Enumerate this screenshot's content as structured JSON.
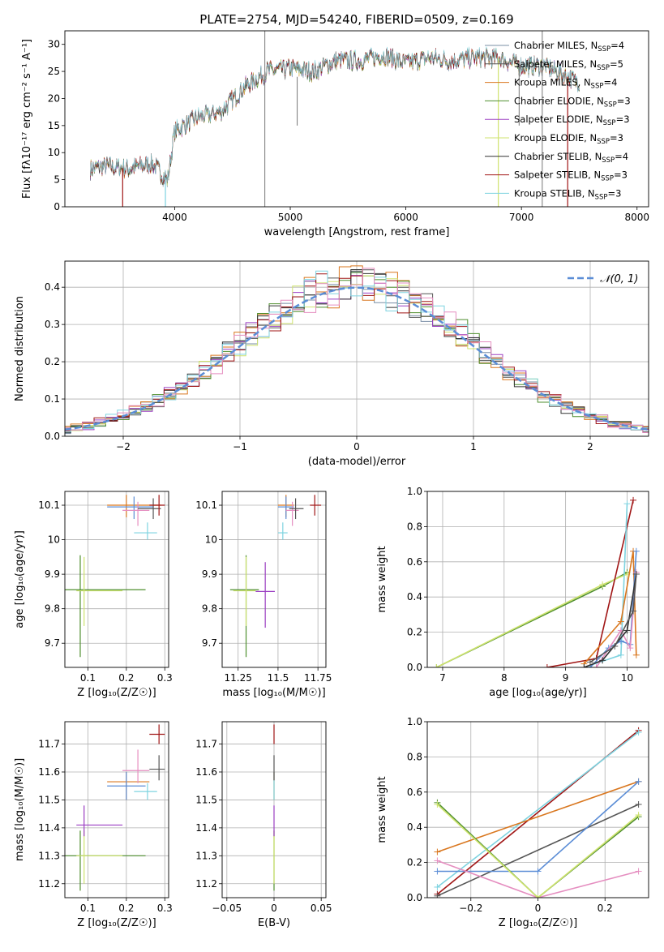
{
  "figure_title": "PLATE=2754, MJD=54240, FIBERID=0509, z=0.169",
  "colors": {
    "Chabrier MILES": "#7a8fa6",
    "Salpeter MILES": "#555555",
    "Kroupa MILES": "#d9771f",
    "Chabrier ELODIE": "#4f8f2f",
    "Salpeter ELODIE": "#9b3fc2",
    "Kroupa ELODIE": "#cfe36f",
    "Chabrier STELIB": "#333333",
    "Salpeter STELIB": "#a01515",
    "Kroupa STELIB": "#7ed3e0",
    "gaussian": "#5b8dd6",
    "z_pink": "#e58ec0",
    "z_blue": "#5b8dd6",
    "z_gray": "#555555"
  },
  "chart_data": [
    {
      "id": "spectrum",
      "type": "line",
      "xlabel": "wavelength [Angstrom, rest frame]",
      "ylabel": "Flux [fλ10⁻¹⁷ erg cm⁻² s⁻¹ A⁻¹]",
      "xlim": [
        3050,
        8100
      ],
      "ylim": [
        0,
        32.5
      ],
      "xticks": [
        4000,
        5000,
        6000,
        7000,
        8000
      ],
      "yticks": [
        0,
        5,
        10,
        15,
        20,
        25,
        30
      ],
      "grid": false,
      "legend_position": "top-right",
      "legend": [
        {
          "name": "Chabrier MILES",
          "nssp": "4"
        },
        {
          "name": "Salpeter MILES",
          "nssp": "5"
        },
        {
          "name": "Kroupa MILES",
          "nssp": "4"
        },
        {
          "name": "Chabrier ELODIE",
          "nssp": "3"
        },
        {
          "name": "Salpeter ELODIE",
          "nssp": "3"
        },
        {
          "name": "Kroupa ELODIE",
          "nssp": "3"
        },
        {
          "name": "Chabrier STELIB",
          "nssp": "4"
        },
        {
          "name": "Salpeter STELIB",
          "nssp": "3"
        },
        {
          "name": "Kroupa STELIB",
          "nssp": "3"
        }
      ],
      "continuum": [
        [
          3270,
          7
        ],
        [
          3400,
          7.5
        ],
        [
          3600,
          7
        ],
        [
          3800,
          8
        ],
        [
          3940,
          5
        ],
        [
          4000,
          14
        ],
        [
          4200,
          16.5
        ],
        [
          4400,
          17.5
        ],
        [
          4600,
          22
        ],
        [
          4800,
          25
        ],
        [
          5000,
          25.5
        ],
        [
          5200,
          25
        ],
        [
          5400,
          27
        ],
        [
          5600,
          27
        ],
        [
          5800,
          28
        ],
        [
          6000,
          26.5
        ],
        [
          6200,
          27.5
        ],
        [
          6400,
          27
        ],
        [
          6600,
          27.5
        ],
        [
          6800,
          27.5
        ],
        [
          7000,
          26
        ],
        [
          7200,
          26
        ],
        [
          7400,
          24
        ],
        [
          7500,
          23
        ]
      ],
      "drops": [
        [
          3550,
          "Salpeter STELIB"
        ],
        [
          3920,
          "Kroupa STELIB"
        ],
        [
          6800,
          "Kroupa ELODIE"
        ],
        [
          7400,
          "Salpeter STELIB"
        ]
      ],
      "spikes": [
        [
          4780,
          0,
          32.5
        ],
        [
          7180,
          0,
          32.5
        ],
        [
          5060,
          15,
          24
        ],
        [
          6980,
          15,
          27
        ]
      ]
    },
    {
      "id": "residuals",
      "type": "histogram",
      "xlabel": "(data-model)/error",
      "ylabel": "Normed distribution",
      "xlim": [
        -2.5,
        2.5
      ],
      "ylim": [
        0,
        0.47
      ],
      "xticks": [
        -2,
        -1,
        0,
        1,
        2
      ],
      "yticks": [
        0.0,
        0.1,
        0.2,
        0.3,
        0.4
      ],
      "grid": true,
      "legend": "𝒩(0, 1)",
      "legend_position": "top-right",
      "bin_width": 0.1,
      "series": [
        "Chabrier MILES",
        "Salpeter MILES",
        "Kroupa MILES",
        "Chabrier ELODIE",
        "Salpeter ELODIE",
        "Kroupa ELODIE",
        "Chabrier STELIB",
        "Salpeter STELIB",
        "Kroupa STELIB",
        "z_pink"
      ]
    },
    {
      "id": "age-vs-Z",
      "type": "scatter",
      "xlabel": "Z [log₁₀(Z/Z☉)]",
      "ylabel": "age  [log₁₀(age/yr)]",
      "xlim": [
        0.04,
        0.31
      ],
      "ylim": [
        9.63,
        10.14
      ],
      "xticks": [
        0.1,
        0.2,
        0.3
      ],
      "yticks": [
        9.7,
        9.8,
        9.9,
        10.0,
        10.1
      ],
      "grid": true,
      "points": [
        {
          "c": "Chabrier ELODIE",
          "x": 0.08,
          "y": 9.855,
          "xerr": [
            0.04,
            0.25
          ],
          "yerr": [
            9.66,
            9.955
          ]
        },
        {
          "c": "Kroupa ELODIE",
          "x": 0.09,
          "y": 9.852,
          "xerr": [
            0.07,
            0.19
          ],
          "yerr": [
            9.75,
            9.95
          ]
        },
        {
          "c": "Kroupa MILES",
          "x": 0.2,
          "y": 10.1,
          "xerr": [
            0.15,
            0.29
          ],
          "yerr": [
            10.065,
            10.13
          ]
        },
        {
          "c": "z_blue",
          "x": 0.22,
          "y": 10.095,
          "xerr": [
            0.15,
            0.27
          ],
          "yerr": [
            10.06,
            10.125
          ]
        },
        {
          "c": "z_pink",
          "x": 0.23,
          "y": 10.085,
          "xerr": [
            0.19,
            0.26
          ],
          "yerr": [
            10.04,
            10.11
          ]
        },
        {
          "c": "Kroupa STELIB",
          "x": 0.255,
          "y": 10.02,
          "xerr": [
            0.22,
            0.28
          ],
          "yerr": [
            10.0,
            10.05
          ]
        },
        {
          "c": "Salpeter MILES",
          "x": 0.27,
          "y": 10.09,
          "xerr": [
            0.23,
            0.29
          ],
          "yerr": [
            10.06,
            10.12
          ]
        },
        {
          "c": "Salpeter STELIB",
          "x": 0.285,
          "y": 10.1,
          "xerr": [
            0.26,
            0.3
          ],
          "yerr": [
            10.07,
            10.13
          ]
        }
      ]
    },
    {
      "id": "age-vs-mass",
      "type": "scatter",
      "xlabel": "mass [log₁₀(M/M☉)]",
      "ylabel": "",
      "xlim": [
        11.15,
        11.8
      ],
      "ylim": [
        9.63,
        10.14
      ],
      "xticks": [
        11.25,
        11.5,
        11.75
      ],
      "yticks": [
        9.7,
        9.8,
        9.9,
        10.0,
        10.1
      ],
      "grid": true,
      "points": [
        {
          "c": "Chabrier ELODIE",
          "x": 11.3,
          "y": 9.855,
          "xerr": [
            11.2,
            11.38
          ],
          "yerr": [
            9.66,
            9.955
          ]
        },
        {
          "c": "Kroupa ELODIE",
          "x": 11.3,
          "y": 9.852,
          "xerr": [
            11.22,
            11.36
          ],
          "yerr": [
            9.75,
            9.95
          ]
        },
        {
          "c": "Salpeter ELODIE",
          "x": 11.42,
          "y": 9.85,
          "xerr": [
            11.36,
            11.48
          ],
          "yerr": [
            9.745,
            9.935
          ]
        },
        {
          "c": "Kroupa MILES",
          "x": 11.55,
          "y": 10.1,
          "xerr": [
            11.5,
            11.6
          ],
          "yerr": [
            10.065,
            10.13
          ]
        },
        {
          "c": "z_blue",
          "x": 11.55,
          "y": 10.095,
          "xerr": [
            11.5,
            11.6
          ],
          "yerr": [
            10.06,
            10.125
          ]
        },
        {
          "c": "z_pink",
          "x": 11.59,
          "y": 10.085,
          "xerr": [
            11.55,
            11.63
          ],
          "yerr": [
            10.04,
            10.11
          ]
        },
        {
          "c": "Kroupa STELIB",
          "x": 11.53,
          "y": 10.02,
          "xerr": [
            11.5,
            11.56
          ],
          "yerr": [
            10.0,
            10.05
          ]
        },
        {
          "c": "Salpeter MILES",
          "x": 11.61,
          "y": 10.09,
          "xerr": [
            11.57,
            11.66
          ],
          "yerr": [
            10.06,
            10.12
          ]
        },
        {
          "c": "Salpeter STELIB",
          "x": 11.73,
          "y": 10.1,
          "xerr": [
            11.7,
            11.77
          ],
          "yerr": [
            10.07,
            10.13
          ]
        }
      ]
    },
    {
      "id": "massweight-vs-age",
      "type": "line",
      "xlabel": "age  [log₁₀(age/yr)]",
      "ylabel": "mass weight",
      "xlim": [
        6.75,
        10.35
      ],
      "ylim": [
        0,
        1
      ],
      "xticks": [
        7,
        8,
        9,
        10
      ],
      "yticks": [
        0.0,
        0.2,
        0.4,
        0.6,
        0.8,
        1.0
      ],
      "grid": true,
      "series": [
        {
          "c": "Chabrier ELODIE",
          "pts": [
            [
              6.9,
              0.0
            ],
            [
              9.6,
              0.46
            ],
            [
              10.0,
              0.54
            ]
          ]
        },
        {
          "c": "Kroupa ELODIE",
          "pts": [
            [
              6.9,
              0.0
            ],
            [
              9.6,
              0.47
            ],
            [
              10.0,
              0.53
            ]
          ]
        },
        {
          "c": "Salpeter STELIB",
          "pts": [
            [
              8.7,
              0.0
            ],
            [
              9.5,
              0.05
            ],
            [
              10.1,
              0.95
            ]
          ]
        },
        {
          "c": "Kroupa STELIB",
          "pts": [
            [
              9.3,
              0.0
            ],
            [
              9.9,
              0.07
            ],
            [
              10.0,
              0.93
            ]
          ]
        },
        {
          "c": "Kroupa MILES",
          "pts": [
            [
              9.3,
              0.02
            ],
            [
              9.9,
              0.26
            ],
            [
              10.1,
              0.66
            ],
            [
              10.15,
              0.07
            ]
          ]
        },
        {
          "c": "z_blue",
          "pts": [
            [
              9.4,
              0.0
            ],
            [
              9.7,
              0.11
            ],
            [
              9.9,
              0.15
            ],
            [
              10.05,
              0.13
            ],
            [
              10.15,
              0.66
            ]
          ]
        },
        {
          "c": "z_pink",
          "pts": [
            [
              9.5,
              0.0
            ],
            [
              9.9,
              0.21
            ],
            [
              10.05,
              0.11
            ],
            [
              10.15,
              0.54
            ]
          ]
        },
        {
          "c": "Chabrier STELIB",
          "pts": [
            [
              9.3,
              0.0
            ],
            [
              9.6,
              0.04
            ],
            [
              10.0,
              0.21
            ],
            [
              10.15,
              0.53
            ]
          ]
        },
        {
          "c": "Salpeter MILES",
          "pts": [
            [
              9.4,
              0.03
            ],
            [
              9.8,
              0.12
            ],
            [
              10.1,
              0.32
            ],
            [
              10.15,
              0.53
            ]
          ]
        }
      ]
    },
    {
      "id": "mass-vs-Z",
      "type": "scatter",
      "xlabel": "Z [log₁₀(Z/Z☉)]",
      "ylabel": "mass [log₁₀(M/M☉)]",
      "xlim": [
        0.04,
        0.31
      ],
      "ylim": [
        11.15,
        11.78
      ],
      "xticks": [
        0.1,
        0.2,
        0.3
      ],
      "yticks": [
        11.2,
        11.3,
        11.4,
        11.5,
        11.6,
        11.7
      ],
      "grid": true,
      "points": [
        {
          "c": "Chabrier ELODIE",
          "x": 0.08,
          "y": 11.3,
          "xerr": [
            0.04,
            0.25
          ],
          "yerr": [
            11.175,
            11.39
          ]
        },
        {
          "c": "Kroupa ELODIE",
          "x": 0.09,
          "y": 11.3,
          "xerr": [
            0.07,
            0.19
          ],
          "yerr": [
            11.2,
            11.39
          ]
        },
        {
          "c": "Salpeter ELODIE",
          "x": 0.09,
          "y": 11.41,
          "xerr": [
            0.07,
            0.19
          ],
          "yerr": [
            11.37,
            11.48
          ]
        },
        {
          "c": "Kroupa MILES",
          "x": 0.2,
          "y": 11.565,
          "xerr": [
            0.15,
            0.26
          ],
          "yerr": [
            11.5,
            11.6
          ]
        },
        {
          "c": "z_blue",
          "x": 0.2,
          "y": 11.55,
          "xerr": [
            0.15,
            0.25
          ],
          "yerr": [
            11.5,
            11.6
          ]
        },
        {
          "c": "z_pink",
          "x": 0.23,
          "y": 11.605,
          "xerr": [
            0.19,
            0.26
          ],
          "yerr": [
            11.56,
            11.68
          ]
        },
        {
          "c": "Kroupa STELIB",
          "x": 0.255,
          "y": 11.53,
          "xerr": [
            0.22,
            0.28
          ],
          "yerr": [
            11.5,
            11.56
          ]
        },
        {
          "c": "Salpeter MILES",
          "x": 0.285,
          "y": 11.61,
          "xerr": [
            0.26,
            0.3
          ],
          "yerr": [
            11.57,
            11.66
          ]
        },
        {
          "c": "Salpeter STELIB",
          "x": 0.285,
          "y": 11.735,
          "xerr": [
            0.26,
            0.3
          ],
          "yerr": [
            11.7,
            11.77
          ]
        }
      ]
    },
    {
      "id": "mass-vs-ebv",
      "type": "scatter",
      "xlabel": "E(B-V)",
      "ylabel": "",
      "xlim": [
        -0.055,
        0.055
      ],
      "ylim": [
        11.15,
        11.78
      ],
      "xticks": [
        -0.05,
        0.0,
        0.05
      ],
      "yticks": [
        11.2,
        11.3,
        11.4,
        11.5,
        11.6,
        11.7
      ],
      "grid": true,
      "points": [
        {
          "c": "Chabrier ELODIE",
          "x": 0,
          "y": 11.3,
          "xerr": [
            0,
            0
          ],
          "yerr": [
            11.175,
            11.39
          ]
        },
        {
          "c": "Kroupa ELODIE",
          "x": 0,
          "y": 11.3,
          "xerr": [
            0,
            0
          ],
          "yerr": [
            11.2,
            11.39
          ]
        },
        {
          "c": "Salpeter ELODIE",
          "x": 0,
          "y": 11.41,
          "xerr": [
            0,
            0
          ],
          "yerr": [
            11.37,
            11.48
          ]
        },
        {
          "c": "Kroupa MILES",
          "x": 0,
          "y": 11.565,
          "xerr": [
            0,
            0
          ],
          "yerr": [
            11.5,
            11.6
          ]
        },
        {
          "c": "Kroupa STELIB",
          "x": 0,
          "y": 11.53,
          "xerr": [
            0,
            0
          ],
          "yerr": [
            11.5,
            11.6
          ]
        },
        {
          "c": "Salpeter MILES",
          "x": 0,
          "y": 11.61,
          "xerr": [
            0,
            0
          ],
          "yerr": [
            11.57,
            11.66
          ]
        },
        {
          "c": "Salpeter STELIB",
          "x": 0,
          "y": 11.735,
          "xerr": [
            0,
            0
          ],
          "yerr": [
            11.7,
            11.77
          ]
        }
      ]
    },
    {
      "id": "massweight-vs-Z",
      "type": "line",
      "xlabel": "Z [log₁₀(Z/Z☉)]",
      "ylabel": "mass weight",
      "xlim": [
        -0.33,
        0.33
      ],
      "ylim": [
        0,
        1
      ],
      "xticks": [
        -0.2,
        0.0,
        0.2
      ],
      "yticks": [
        0.0,
        0.2,
        0.4,
        0.6,
        0.8,
        1.0
      ],
      "grid": true,
      "series": [
        {
          "c": "Salpeter STELIB",
          "pts": [
            [
              -0.3,
              0.02
            ],
            [
              0.3,
              0.95
            ]
          ]
        },
        {
          "c": "Kroupa STELIB",
          "pts": [
            [
              -0.3,
              0.06
            ],
            [
              0.3,
              0.94
            ]
          ]
        },
        {
          "c": "Kroupa MILES",
          "pts": [
            [
              -0.3,
              0.26
            ],
            [
              0.3,
              0.66
            ]
          ]
        },
        {
          "c": "Salpeter MILES",
          "pts": [
            [
              -0.3,
              0.01
            ],
            [
              0.3,
              0.53
            ]
          ]
        },
        {
          "c": "z_blue",
          "pts": [
            [
              -0.3,
              0.15
            ],
            [
              0.0,
              0.15
            ],
            [
              0.3,
              0.66
            ]
          ]
        },
        {
          "c": "z_pink",
          "pts": [
            [
              -0.3,
              0.21
            ],
            [
              0.0,
              0.0
            ],
            [
              0.3,
              0.15
            ]
          ]
        },
        {
          "c": "Chabrier ELODIE",
          "pts": [
            [
              -0.3,
              0.54
            ],
            [
              0.0,
              0.0
            ],
            [
              0.3,
              0.46
            ]
          ]
        },
        {
          "c": "Kroupa ELODIE",
          "pts": [
            [
              -0.3,
              0.53
            ],
            [
              0.0,
              0.0
            ],
            [
              0.3,
              0.47
            ]
          ]
        }
      ]
    }
  ]
}
